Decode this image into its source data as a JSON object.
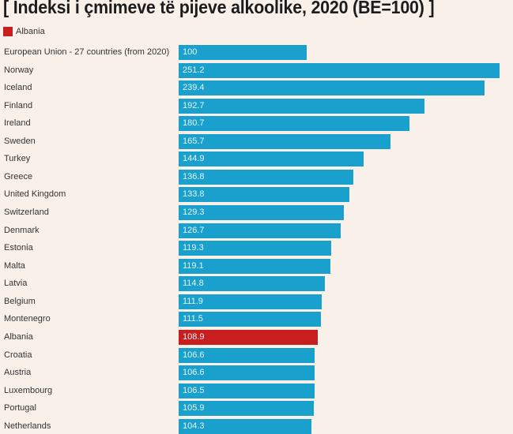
{
  "chart_data": {
    "type": "bar",
    "orientation": "horizontal",
    "title": "[ Indeksi i çmimeve të pijeve alkoolike, 2020 (BE=100) ]",
    "legend": [
      {
        "label": "Albania",
        "color": "#c81e1e"
      }
    ],
    "legend_position": "top-left",
    "xlabel": "",
    "ylabel": "",
    "xlim": [
      0,
      255
    ],
    "grid": false,
    "colors": {
      "default": "#1aa0cc",
      "highlight": "#c81e1e"
    },
    "highlight": "Albania",
    "categories": [
      "European Union - 27 countries (from 2020)",
      "Norway",
      "Iceland",
      "Finland",
      "Ireland",
      "Sweden",
      "Turkey",
      "Greece",
      "United Kingdom",
      "Switzerland",
      "Denmark",
      "Estonia",
      "Malta",
      "Latvia",
      "Belgium",
      "Montenegro",
      "Albania",
      "Croatia",
      "Austria",
      "Luxembourg",
      "Portugal",
      "Netherlands"
    ],
    "values": [
      100,
      251.2,
      239.4,
      192.7,
      180.7,
      165.7,
      144.9,
      136.8,
      133.8,
      129.3,
      126.7,
      119.3,
      119.1,
      114.8,
      111.9,
      111.5,
      108.9,
      106.6,
      106.6,
      106.5,
      105.9,
      104.3
    ],
    "value_labels": [
      "100",
      "251.2",
      "239.4",
      "192.7",
      "180.7",
      "165.7",
      "144.9",
      "136.8",
      "133.8",
      "129.3",
      "126.7",
      "119.3",
      "119.1",
      "114.8",
      "111.9",
      "111.5",
      "108.9",
      "106.6",
      "106.6",
      "106.5",
      "105.9",
      "104.3"
    ]
  },
  "header": {
    "title": "[ Indeksi i çmimeve të pijeve alkoolike, 2020 (BE=100) ]",
    "legend_label": "Albania"
  }
}
